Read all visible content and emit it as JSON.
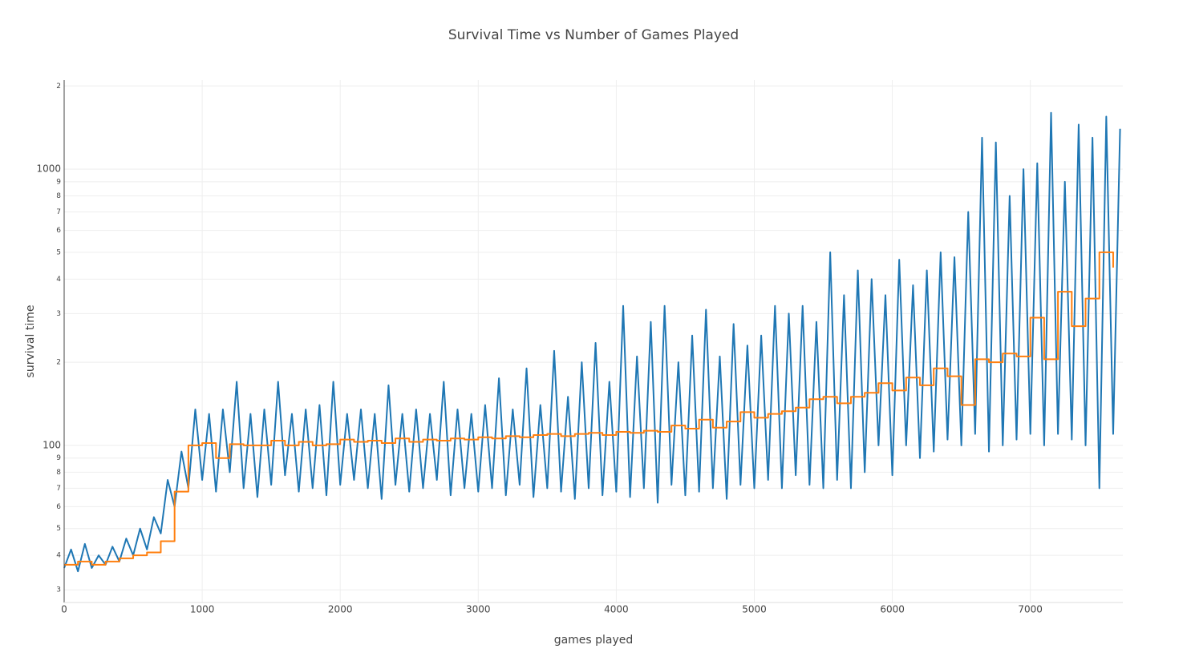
{
  "chart_data": {
    "type": "line",
    "title": "Survival Time vs Number of Games Played",
    "x_label": "games played",
    "y_label": "survival time",
    "xlim": [
      0,
      7670
    ],
    "xticks": [
      0,
      1000,
      2000,
      3000,
      4000,
      5000,
      6000,
      7000
    ],
    "ylim": [
      27,
      2100
    ],
    "log_y": true,
    "grid": true,
    "yticks": [
      {
        "value": 30,
        "label": "3"
      },
      {
        "value": 40,
        "label": "4"
      },
      {
        "value": 50,
        "label": "5"
      },
      {
        "value": 60,
        "label": "6"
      },
      {
        "value": 70,
        "label": "7"
      },
      {
        "value": 80,
        "label": "8"
      },
      {
        "value": 90,
        "label": "9"
      },
      100,
      {
        "value": 200,
        "label": "2"
      },
      {
        "value": 300,
        "label": "3"
      },
      {
        "value": 400,
        "label": "4"
      },
      {
        "value": 500,
        "label": "5"
      },
      {
        "value": 600,
        "label": "6"
      },
      {
        "value": 700,
        "label": "7"
      },
      {
        "value": 800,
        "label": "8"
      },
      {
        "value": 900,
        "label": "9"
      },
      1000,
      {
        "value": 2000,
        "label": "2"
      }
    ],
    "series": [
      {
        "color": "#1f77b4",
        "shape": "linear",
        "x": [
          0,
          50,
          100,
          150,
          200,
          250,
          300,
          350,
          400,
          450,
          500,
          550,
          600,
          650,
          700,
          750,
          800,
          850,
          900,
          950,
          1000,
          1050,
          1100,
          1150,
          1200,
          1250,
          1300,
          1350,
          1400,
          1450,
          1500,
          1550,
          1600,
          1650,
          1700,
          1750,
          1800,
          1850,
          1900,
          1950,
          2000,
          2050,
          2100,
          2150,
          2200,
          2250,
          2300,
          2350,
          2400,
          2450,
          2500,
          2550,
          2600,
          2650,
          2700,
          2750,
          2800,
          2850,
          2900,
          2950,
          3000,
          3050,
          3100,
          3150,
          3200,
          3250,
          3300,
          3350,
          3400,
          3450,
          3500,
          3550,
          3600,
          3650,
          3700,
          3750,
          3800,
          3850,
          3900,
          3950,
          4000,
          4050,
          4100,
          4150,
          4200,
          4250,
          4300,
          4350,
          4400,
          4450,
          4500,
          4550,
          4600,
          4650,
          4700,
          4750,
          4800,
          4850,
          4900,
          4950,
          5000,
          5050,
          5100,
          5150,
          5200,
          5250,
          5300,
          5350,
          5400,
          5450,
          5500,
          5550,
          5600,
          5650,
          5700,
          5750,
          5800,
          5850,
          5900,
          5950,
          6000,
          6050,
          6100,
          6150,
          6200,
          6250,
          6300,
          6350,
          6400,
          6450,
          6500,
          6550,
          6600,
          6650,
          6700,
          6750,
          6800,
          6850,
          6900,
          6950,
          7000,
          7050,
          7100,
          7150,
          7200,
          7250,
          7300,
          7350,
          7400,
          7450,
          7500,
          7550,
          7600,
          7650
        ],
        "values": [
          36,
          42,
          35,
          44,
          36,
          40,
          37,
          43,
          38,
          46,
          40,
          50,
          42,
          55,
          48,
          75,
          60,
          95,
          70,
          135,
          75,
          130,
          68,
          135,
          80,
          170,
          70,
          130,
          65,
          135,
          72,
          170,
          78,
          130,
          68,
          135,
          70,
          140,
          66,
          170,
          72,
          130,
          75,
          135,
          70,
          130,
          64,
          165,
          72,
          130,
          68,
          135,
          70,
          130,
          75,
          170,
          66,
          135,
          70,
          130,
          68,
          140,
          70,
          175,
          66,
          135,
          72,
          190,
          65,
          140,
          70,
          220,
          68,
          150,
          64,
          200,
          70,
          235,
          66,
          170,
          68,
          320,
          65,
          210,
          70,
          280,
          62,
          320,
          72,
          200,
          66,
          250,
          68,
          310,
          70,
          210,
          64,
          275,
          72,
          230,
          70,
          250,
          75,
          320,
          70,
          300,
          78,
          320,
          72,
          280,
          70,
          500,
          75,
          350,
          70,
          430,
          80,
          400,
          100,
          350,
          78,
          470,
          100,
          380,
          90,
          430,
          95,
          500,
          105,
          480,
          100,
          700,
          110,
          1300,
          95,
          1250,
          100,
          800,
          105,
          1000,
          110,
          1050,
          100,
          1600,
          110,
          900,
          105,
          1450,
          100,
          1300,
          70,
          1550,
          110,
          1400
        ]
      },
      {
        "color": "#ff7f0e",
        "shape": "hv",
        "x": [
          0,
          100,
          200,
          300,
          400,
          500,
          600,
          700,
          800,
          900,
          1000,
          1100,
          1200,
          1300,
          1400,
          1500,
          1600,
          1700,
          1800,
          1900,
          2000,
          2100,
          2200,
          2300,
          2400,
          2500,
          2600,
          2700,
          2800,
          2900,
          3000,
          3100,
          3200,
          3300,
          3400,
          3500,
          3600,
          3700,
          3800,
          3900,
          4000,
          4100,
          4200,
          4300,
          4400,
          4500,
          4600,
          4700,
          4800,
          4900,
          5000,
          5100,
          5200,
          5300,
          5400,
          5500,
          5600,
          5700,
          5800,
          5900,
          6000,
          6100,
          6200,
          6300,
          6400,
          6500,
          6600,
          6700,
          6800,
          6900,
          7000,
          7100,
          7200,
          7300,
          7400,
          7500,
          7600
        ],
        "values": [
          37,
          38,
          37,
          38,
          39,
          40,
          41,
          45,
          68,
          100,
          102,
          90,
          101,
          100,
          100,
          104,
          100,
          103,
          100,
          101,
          105,
          103,
          104,
          102,
          106,
          103,
          105,
          104,
          106,
          105,
          107,
          106,
          108,
          107,
          109,
          110,
          108,
          110,
          111,
          109,
          112,
          111,
          113,
          112,
          118,
          115,
          124,
          116,
          122,
          132,
          126,
          130,
          133,
          137,
          147,
          150,
          142,
          150,
          155,
          168,
          158,
          176,
          165,
          190,
          178,
          140,
          205,
          200,
          215,
          210,
          290,
          205,
          360,
          270,
          340,
          500,
          440
        ]
      }
    ]
  }
}
